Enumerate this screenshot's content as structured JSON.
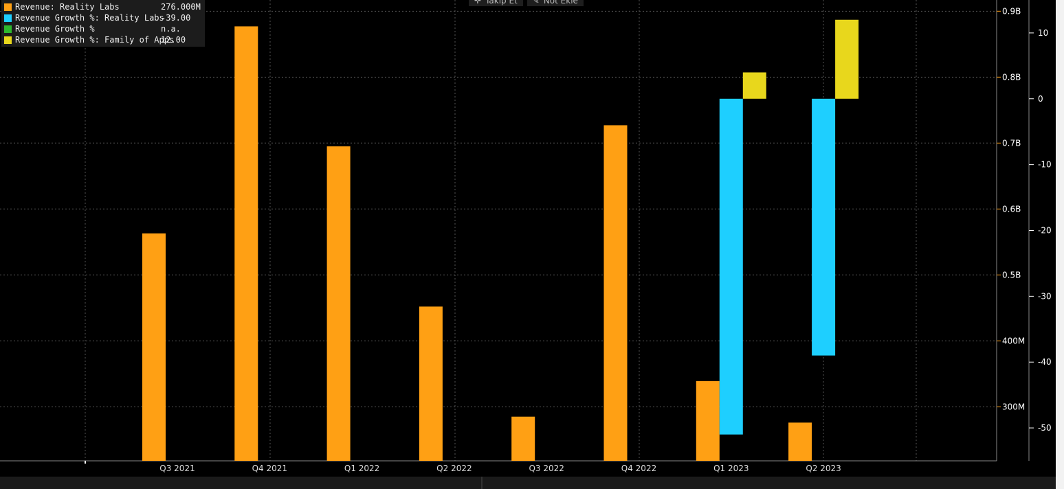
{
  "toolbar": {
    "follow_label": "Takip Et",
    "follow_icon": "plus-icon",
    "note_label": "Not Ekle",
    "note_icon": "pencil-icon"
  },
  "legend": [
    {
      "name": "Revenue: Reality Labs",
      "value": "276.000M",
      "color": "#FFA014"
    },
    {
      "name": "Revenue Growth %: Reality Labs",
      "value": "-39.00",
      "color": "#1ECFFF"
    },
    {
      "name": "Revenue Growth %",
      "value": "n.a.",
      "color": "#2DB82D"
    },
    {
      "name": "Revenue Growth %: Family of Apps",
      "value": "12.00",
      "color": "#E8D71C"
    }
  ],
  "chart_data": {
    "type": "bar",
    "categories": [
      "Q3 2021",
      "Q4 2021",
      "Q1 2022",
      "Q2 2022",
      "Q3 2022",
      "Q4 2022",
      "Q1 2023",
      "Q2 2023"
    ],
    "left_axis": {
      "ticks": [
        "300M",
        "400M",
        "0.5B",
        "0.6B",
        "0.7B",
        "0.8B",
        "0.9B"
      ],
      "tick_values": [
        300,
        400,
        500,
        600,
        700,
        800,
        900
      ],
      "unit": "millions",
      "ylim": [
        218,
        917
      ]
    },
    "right_axis": {
      "ticks": [
        "-50",
        "-40",
        "-30",
        "-20",
        "-10",
        "0",
        "10"
      ],
      "tick_values": [
        -50,
        -40,
        -30,
        -20,
        -10,
        0,
        10
      ],
      "ylim": [
        -55,
        15
      ]
    },
    "series": [
      {
        "name": "Revenue: Reality Labs",
        "axis": "left",
        "color": "#FFA014",
        "values": [
          563,
          877,
          695,
          452,
          285,
          727,
          339,
          276
        ]
      },
      {
        "name": "Revenue Growth %: Reality Labs",
        "axis": "right",
        "color": "#1ECFFF",
        "values": [
          null,
          null,
          null,
          null,
          null,
          null,
          -51,
          -39
        ]
      },
      {
        "name": "Revenue Growth %",
        "axis": "right",
        "color": "#2DB82D",
        "values": [
          null,
          null,
          null,
          null,
          null,
          null,
          null,
          null
        ]
      },
      {
        "name": "Revenue Growth %: Family of Apps",
        "axis": "right",
        "color": "#E8D71C",
        "values": [
          null,
          null,
          null,
          null,
          null,
          null,
          4,
          12
        ]
      }
    ],
    "grid": true,
    "legend_position": "top-left",
    "background": "#000000",
    "axis_color": "#FFA014"
  }
}
